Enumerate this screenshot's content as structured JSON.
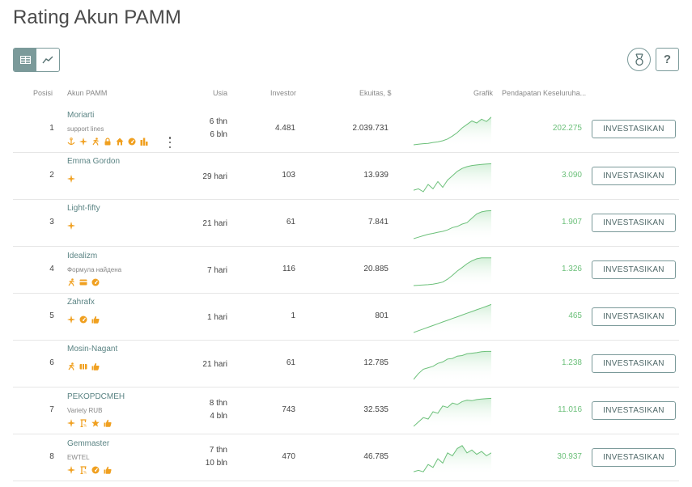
{
  "title": "Rating Akun PAMM",
  "headers": {
    "posisi": "Posisi",
    "akun": "Akun PAMM",
    "usia": "Usia",
    "investor": "Investor",
    "ekuitas": "Ekuitas, $",
    "grafik": "Grafik",
    "pendapatan": "Pendapatan Keseluruha..."
  },
  "help_label": "?",
  "invest_label": "INVESTASIKAN",
  "colors": {
    "accent": "#7b9a9a",
    "profit": "#6cc07a",
    "icon": "#f0a020"
  },
  "rows": [
    {
      "pos": "1",
      "name": "Moriarti",
      "sub": "support lines",
      "age1": "6 thn",
      "age2": "6 bln",
      "investors": "4.481",
      "equity": "2.039.731",
      "profit": "202.275",
      "icons": [
        "anchor-icon",
        "fan-icon",
        "runner-icon",
        "lock-icon",
        "house-icon",
        "speedometer-icon",
        "chart-bars-icon"
      ],
      "more": true,
      "spark": [
        0,
        0.02,
        0.04,
        0.05,
        0.08,
        0.1,
        0.14,
        0.2,
        0.3,
        0.42,
        0.58,
        0.7,
        0.82,
        0.75,
        0.88,
        0.8,
        0.95
      ]
    },
    {
      "pos": "2",
      "name": "Emma Gordon",
      "sub": "",
      "age1": "29 hari",
      "age2": "",
      "investors": "103",
      "equity": "13.939",
      "profit": "3.090",
      "icons": [
        "fan-icon"
      ],
      "more": false,
      "spark": [
        0.05,
        0.1,
        0.0,
        0.25,
        0.1,
        0.35,
        0.15,
        0.4,
        0.55,
        0.7,
        0.8,
        0.86,
        0.9,
        0.92,
        0.94,
        0.95,
        0.96
      ]
    },
    {
      "pos": "3",
      "name": "Light-fifty",
      "sub": "",
      "age1": "21 hari",
      "age2": "",
      "investors": "61",
      "equity": "7.841",
      "profit": "1.907",
      "icons": [
        "fan-icon"
      ],
      "more": false,
      "spark": [
        0,
        0.05,
        0.1,
        0.15,
        0.18,
        0.22,
        0.25,
        0.3,
        0.38,
        0.42,
        0.5,
        0.55,
        0.7,
        0.85,
        0.92,
        0.95,
        0.96
      ]
    },
    {
      "pos": "4",
      "name": "Idealizm",
      "sub": "Формула найдена",
      "age1": "7 hari",
      "age2": "",
      "investors": "116",
      "equity": "20.885",
      "profit": "1.326",
      "icons": [
        "runner-icon",
        "card-icon",
        "speedometer-icon"
      ],
      "more": false,
      "spark": [
        0,
        0.01,
        0.02,
        0.03,
        0.05,
        0.08,
        0.12,
        0.22,
        0.35,
        0.5,
        0.62,
        0.75,
        0.85,
        0.92,
        0.95,
        0.95,
        0.95
      ]
    },
    {
      "pos": "5",
      "name": "Zahrafx",
      "sub": "",
      "age1": "1 hari",
      "age2": "",
      "investors": "1",
      "equity": "801",
      "profit": "465",
      "icons": [
        "fan-icon",
        "speedometer-icon",
        "thumbs-up-icon"
      ],
      "more": false,
      "spark": [
        0,
        0.06,
        0.12,
        0.18,
        0.24,
        0.3,
        0.36,
        0.42,
        0.48,
        0.54,
        0.6,
        0.66,
        0.72,
        0.78,
        0.84,
        0.9,
        0.96
      ]
    },
    {
      "pos": "6",
      "name": "Mosin-Nagant",
      "sub": "",
      "age1": "21 hari",
      "age2": "",
      "investors": "61",
      "equity": "12.785",
      "profit": "1.238",
      "icons": [
        "runner-icon",
        "wallet-icon",
        "thumbs-up-icon"
      ],
      "more": false,
      "spark": [
        0,
        0.2,
        0.35,
        0.4,
        0.45,
        0.55,
        0.6,
        0.7,
        0.72,
        0.8,
        0.82,
        0.88,
        0.9,
        0.92,
        0.95,
        0.96,
        0.96
      ]
    },
    {
      "pos": "7",
      "name": "PEKOPDCMEH",
      "sub": "Variety RUB",
      "age1": "8 thn",
      "age2": "4 bln",
      "investors": "743",
      "equity": "32.535",
      "profit": "11.016",
      "icons": [
        "fan-icon",
        "crane-icon",
        "star-icon",
        "thumbs-up-icon"
      ],
      "more": false,
      "spark": [
        0,
        0.15,
        0.3,
        0.25,
        0.5,
        0.45,
        0.7,
        0.65,
        0.8,
        0.75,
        0.85,
        0.9,
        0.88,
        0.92,
        0.94,
        0.95,
        0.96
      ]
    },
    {
      "pos": "8",
      "name": "Gemmaster",
      "sub": "EWTEL",
      "age1": "7 thn",
      "age2": "10 bln",
      "investors": "470",
      "equity": "46.785",
      "profit": "30.937",
      "icons": [
        "fan-icon",
        "crane-icon",
        "speedometer-icon",
        "thumbs-up-icon"
      ],
      "more": false,
      "spark": [
        0.05,
        0.1,
        0.05,
        0.3,
        0.2,
        0.5,
        0.35,
        0.7,
        0.6,
        0.85,
        0.95,
        0.7,
        0.8,
        0.65,
        0.75,
        0.6,
        0.7
      ]
    }
  ]
}
